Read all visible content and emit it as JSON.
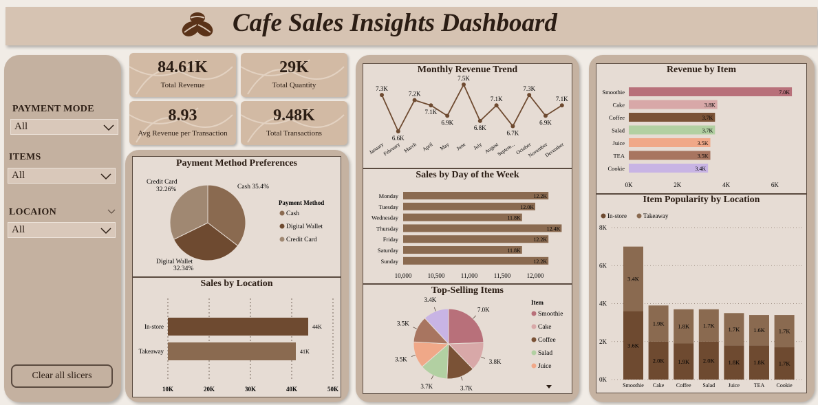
{
  "header": {
    "title": "Cafe Sales Insights Dashboard",
    "logo_icon": "coffee-beans-icon"
  },
  "sidebar": {
    "slicers": [
      {
        "title": "PAYMENT MODE",
        "value": "All"
      },
      {
        "title": "ITEMS",
        "value": "All"
      },
      {
        "title": "LOCAION",
        "value": "All"
      }
    ],
    "clear_label": "Clear all slicers"
  },
  "kpis": [
    {
      "value": "84.61K",
      "label": "Total Revenue"
    },
    {
      "value": "29K",
      "label": "Total Quantity"
    },
    {
      "value": "8.93",
      "label": "Avg Revenue per Transaction"
    },
    {
      "value": "9.48K",
      "label": "Total Transactions"
    }
  ],
  "colors": {
    "dark_brown": "#6e4a30",
    "mid_brown": "#8a6a50",
    "light_brown": "#a08872",
    "rose": "#b8707a",
    "pink": "#d8a8a8",
    "green": "#b2d0a2",
    "salmon": "#f0a888",
    "mauve": "#c8b4e4",
    "sienna": "#a87560"
  },
  "chart_data": [
    {
      "id": "payment",
      "type": "pie",
      "title": "Payment Method Preferences",
      "legend_title": "Payment Method",
      "categories": [
        "Cash",
        "Digital Wallet",
        "Credit Card"
      ],
      "values": [
        35.4,
        32.34,
        32.26
      ],
      "labels": [
        "Cash 35.4%",
        "Digital Wallet 32.34%",
        "Credit Card 32.26%"
      ],
      "colors": [
        "#8a6a50",
        "#6e4a30",
        "#a08872"
      ]
    },
    {
      "id": "location",
      "type": "bar",
      "title": "Sales by Location",
      "categories": [
        "In-store",
        "Takeaway"
      ],
      "values": [
        44,
        41
      ],
      "value_labels": [
        "44K",
        "41K"
      ],
      "xticks": [
        "10K",
        "20K",
        "30K",
        "40K",
        "50K"
      ],
      "xlim": [
        10,
        50
      ]
    },
    {
      "id": "monthly",
      "type": "line",
      "title": "Monthly Revenue Trend",
      "categories": [
        "January",
        "February",
        "March",
        "April",
        "May",
        "June",
        "July",
        "August",
        "Septem...",
        "October",
        "November",
        "December"
      ],
      "values": [
        7.3,
        6.6,
        7.2,
        7.1,
        6.9,
        7.5,
        6.8,
        7.1,
        6.7,
        7.3,
        6.9,
        7.1
      ],
      "value_labels": [
        "7.3K",
        "6.6K",
        "7.2K",
        "7.1K",
        "6.9K",
        "7.5K",
        "6.8K",
        "7.1K",
        "6.7K",
        "7.3K",
        "6.9K",
        "7.1K"
      ]
    },
    {
      "id": "dayofweek",
      "type": "bar",
      "title": "Sales by Day of the Week",
      "categories": [
        "Monday",
        "Tuesday",
        "Wednesday",
        "Thursday",
        "Friday",
        "Saturday",
        "Sunday"
      ],
      "values": [
        12.2,
        12.0,
        11.8,
        12.4,
        12.2,
        11.8,
        12.2
      ],
      "value_labels": [
        "12.2K",
        "12.0K",
        "11.8K",
        "12.4K",
        "12.2K",
        "11.8K",
        "12.2K"
      ],
      "xticks": [
        "10,000",
        "10,500",
        "11,000",
        "11,500",
        "12,000"
      ],
      "xlim": [
        10000,
        12500
      ]
    },
    {
      "id": "topselling",
      "type": "pie",
      "title": "Top-Selling Items",
      "legend_title": "Item",
      "legend_items": [
        "Smoothie",
        "Cake",
        "Coffee",
        "Salad",
        "Juice"
      ],
      "categories": [
        "Smoothie",
        "Cake",
        "Coffee",
        "Salad",
        "Juice",
        "TEA",
        "Cookie"
      ],
      "values": [
        7.0,
        3.8,
        3.7,
        3.7,
        3.5,
        3.5,
        3.4
      ],
      "value_labels": [
        "7.0K",
        "3.8K",
        "3.7K",
        "3.7K",
        "3.5K",
        "3.5K",
        "3.4K"
      ],
      "colors": [
        "#b8707a",
        "#d8a8a8",
        "#7a5236",
        "#b2d0a2",
        "#f0a888",
        "#a87560",
        "#c8b4e4"
      ]
    },
    {
      "id": "revenuebyitem",
      "type": "bar",
      "title": "Revenue by Item",
      "categories": [
        "Smoothie",
        "Cake",
        "Coffee",
        "Salad",
        "Juice",
        "TEA",
        "Cookie"
      ],
      "values": [
        7.0,
        3.8,
        3.7,
        3.7,
        3.5,
        3.5,
        3.4
      ],
      "value_labels": [
        "7.0K",
        "3.8K",
        "3.7K",
        "3.7K",
        "3.5K",
        "3.5K",
        "3.4K"
      ],
      "colors": [
        "#b8707a",
        "#d8a8a8",
        "#7a5236",
        "#b2d0a2",
        "#f0a888",
        "#a87560",
        "#c8b4e4"
      ],
      "xticks": [
        "0K",
        "2K",
        "4K",
        "6K"
      ],
      "xlim": [
        0,
        7.5
      ]
    },
    {
      "id": "popularity",
      "type": "bar",
      "title": "Item Popularity by Location",
      "categories": [
        "Smoothie",
        "Cake",
        "Coffee",
        "Salad",
        "Juice",
        "TEA",
        "Cookie"
      ],
      "series": [
        {
          "name": "In-store",
          "values": [
            3.6,
            2.0,
            1.9,
            2.0,
            1.8,
            1.8,
            1.7
          ],
          "labels": [
            "3.6K",
            "2.0K",
            "1.9K",
            "2.0K",
            "1.8K",
            "1.8K",
            "1.7K"
          ],
          "color": "#6e4a30"
        },
        {
          "name": "Takeaway",
          "values": [
            3.4,
            1.9,
            1.8,
            1.7,
            1.7,
            1.6,
            1.7
          ],
          "labels": [
            "3.4K",
            "1.9K",
            "1.8K",
            "1.7K",
            "1.7K",
            "1.6K",
            "1.7K"
          ],
          "color": "#8a6a50"
        }
      ],
      "yticks": [
        "0K",
        "2K",
        "4K",
        "6K",
        "8K"
      ],
      "ylim": [
        0,
        8
      ]
    }
  ]
}
